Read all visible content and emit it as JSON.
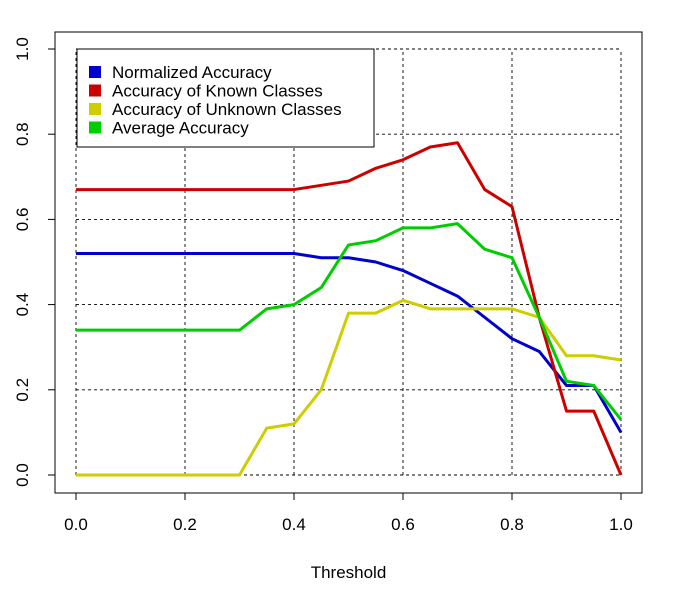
{
  "chart_data": {
    "type": "line",
    "title": "",
    "xlabel": "Threshold",
    "ylabel": "",
    "xlim": [
      0,
      1
    ],
    "ylim": [
      0,
      1
    ],
    "x_ticks": [
      "0.0",
      "0.2",
      "0.4",
      "0.6",
      "0.8",
      "1.0"
    ],
    "y_ticks": [
      "0.0",
      "0.2",
      "0.4",
      "0.6",
      "0.8",
      "1.0"
    ],
    "grid": true,
    "legend_position": "top-left",
    "x": [
      0,
      0.05,
      0.1,
      0.15,
      0.2,
      0.25,
      0.3,
      0.35,
      0.4,
      0.45,
      0.5,
      0.55,
      0.6,
      0.65,
      0.7,
      0.75,
      0.8,
      0.85,
      0.9,
      0.95,
      1.0
    ],
    "series": [
      {
        "name": "Normalized Accuracy",
        "color": "#0000cd",
        "values": [
          0.52,
          0.52,
          0.52,
          0.52,
          0.52,
          0.52,
          0.52,
          0.52,
          0.52,
          0.51,
          0.51,
          0.5,
          0.48,
          0.45,
          0.42,
          0.37,
          0.32,
          0.29,
          0.21,
          0.21,
          0.1
        ]
      },
      {
        "name": "Accuracy of Known Classes",
        "color": "#cd0000",
        "values": [
          0.67,
          0.67,
          0.67,
          0.67,
          0.67,
          0.67,
          0.67,
          0.67,
          0.67,
          0.68,
          0.69,
          0.72,
          0.74,
          0.77,
          0.78,
          0.67,
          0.63,
          0.37,
          0.15,
          0.15,
          0.0
        ]
      },
      {
        "name": "Accuracy of Unknown Classes",
        "color": "#cdcd00",
        "values": [
          0.0,
          0.0,
          0.0,
          0.0,
          0.0,
          0.0,
          0.0,
          0.11,
          0.12,
          0.2,
          0.38,
          0.38,
          0.41,
          0.39,
          0.39,
          0.39,
          0.39,
          0.37,
          0.28,
          0.28,
          0.27
        ]
      },
      {
        "name": "Average Accuracy",
        "color": "#00cd00",
        "values": [
          0.34,
          0.34,
          0.34,
          0.34,
          0.34,
          0.34,
          0.34,
          0.39,
          0.4,
          0.44,
          0.54,
          0.55,
          0.58,
          0.58,
          0.59,
          0.53,
          0.51,
          0.37,
          0.22,
          0.21,
          0.13
        ]
      }
    ]
  }
}
